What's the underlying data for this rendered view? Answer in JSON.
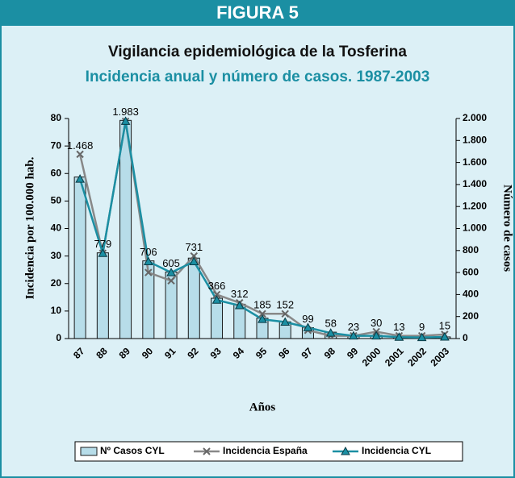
{
  "chart_data": {
    "type": "bar_line",
    "header": "FIGURA 5",
    "title": "Vigilancia epidemiológica de la Tosferina",
    "subtitle": "Incidencia anual y número de casos. 1987-2003",
    "ylabel": "Incidencia por 100.000 hab.",
    "y2label": "Número de casos",
    "xlabel": "Años",
    "categories": [
      "87",
      "88",
      "89",
      "90",
      "91",
      "92",
      "93",
      "94",
      "95",
      "96",
      "97",
      "98",
      "99",
      "2000",
      "2001",
      "2002",
      "2003"
    ],
    "series": [
      {
        "name": "Nº Casos CYL",
        "color": "#b7dde9",
        "axis": "y2",
        "values": [
          1468,
          779,
          1983,
          706,
          605,
          731,
          366,
          312,
          185,
          152,
          99,
          58,
          23,
          30,
          13,
          9,
          15
        ],
        "value_labels": [
          "1.468",
          "779",
          "1.983",
          "706",
          "605",
          "731",
          "366",
          "312",
          "185",
          "152",
          "99",
          "58",
          "23",
          "30",
          "13",
          "9",
          "15"
        ]
      },
      {
        "name": "Incidencia España",
        "color": "#888888",
        "values": [
          67,
          31,
          79,
          24,
          21,
          30,
          16,
          13,
          9,
          9,
          3,
          1,
          1,
          2.5,
          1,
          1,
          1.5
        ]
      },
      {
        "name": "Incidencia CYL",
        "color": "#1b8fa3",
        "values": [
          58,
          31,
          79,
          28,
          24,
          28,
          14,
          12,
          7,
          6,
          4,
          2,
          1,
          1,
          0.5,
          0.4,
          0.6
        ]
      }
    ],
    "ylim": [
      0,
      80
    ],
    "yticks": [
      0,
      10,
      20,
      30,
      40,
      50,
      60,
      70,
      80
    ],
    "y2lim": [
      0,
      2000
    ],
    "y2ticks": [
      0,
      200,
      400,
      600,
      800,
      {
        "value": 1000,
        "label": "1.000"
      },
      {
        "value": 1200,
        "label": "1.200"
      },
      {
        "value": 1400,
        "label": "1.400"
      },
      {
        "value": 1600,
        "label": "1.600"
      },
      {
        "value": 1800,
        "label": "1.800"
      },
      {
        "value": 2000,
        "label": "2.000"
      }
    ],
    "legend": "bottom"
  }
}
